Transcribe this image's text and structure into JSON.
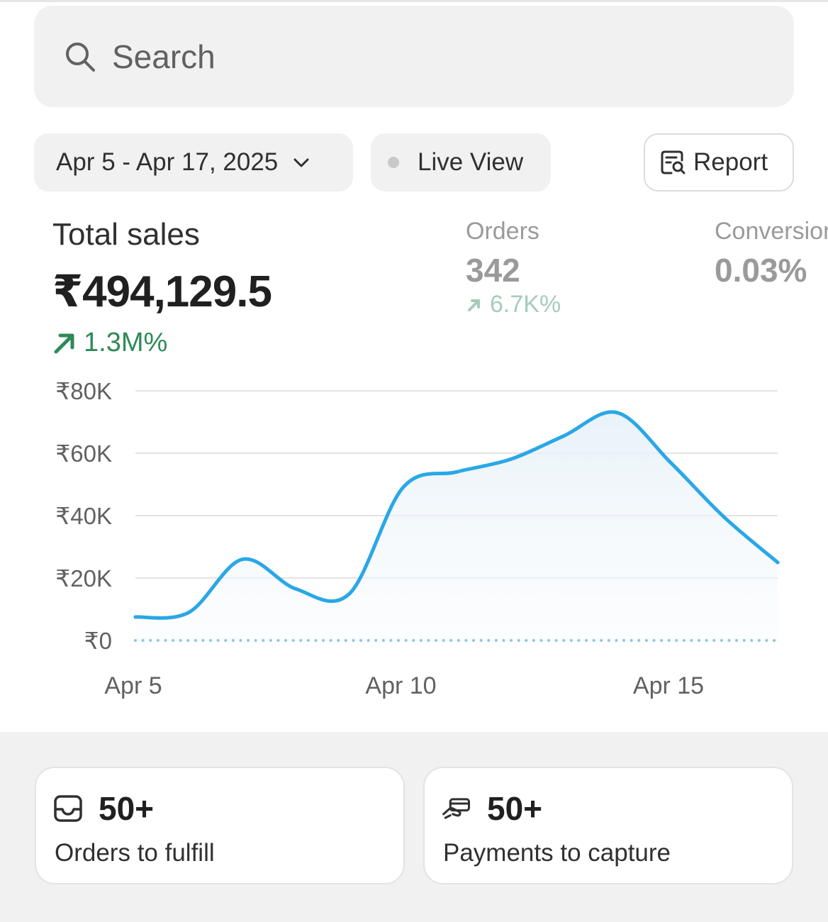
{
  "search": {
    "placeholder": "Search",
    "icon": "search-icon"
  },
  "toolbar": {
    "date_range": "Apr 5 - Apr 17, 2025",
    "live_view": "Live View",
    "report": "Report"
  },
  "metrics": {
    "total_sales": {
      "title": "Total sales",
      "value": "₹494,129.5",
      "change": "1.3M%"
    },
    "orders": {
      "title": "Orders",
      "value": "342",
      "change": "6.7K%"
    },
    "conversion": {
      "title": "Conversion",
      "value": "0.03%"
    }
  },
  "colors": {
    "line": "#2aa7e6",
    "positive": "#2e8a57",
    "faded_positive": "#a5cdb8",
    "panel_bg": "#f1f1f1"
  },
  "chart_data": {
    "type": "area",
    "x": [
      "Apr 5",
      "Apr 6",
      "Apr 7",
      "Apr 8",
      "Apr 9",
      "Apr 10",
      "Apr 11",
      "Apr 12",
      "Apr 13",
      "Apr 14",
      "Apr 15",
      "Apr 16",
      "Apr 17"
    ],
    "series": [
      {
        "values": [
          7500,
          9000,
          26000,
          16500,
          15000,
          49000,
          54000,
          58000,
          65500,
          73000,
          57000,
          39500,
          25000
        ]
      },
      {
        "values": [
          0,
          0,
          0,
          0,
          0,
          0,
          0,
          0,
          0,
          0,
          0,
          0,
          0
        ]
      }
    ],
    "y_ticks": [
      "₹80K",
      "₹60K",
      "₹40K",
      "₹20K",
      "₹0"
    ],
    "y_tick_values": [
      80000,
      60000,
      40000,
      20000,
      0
    ],
    "x_ticks": [
      "Apr 5",
      "Apr 10",
      "Apr 15"
    ],
    "ylim": [
      0,
      80000
    ],
    "grid": true
  },
  "cards": [
    {
      "count": "50+",
      "label": "Orders to fulfill",
      "icon": "inbox-icon"
    },
    {
      "count": "50+",
      "label": "Payments to capture",
      "icon": "hand-card-icon"
    }
  ]
}
